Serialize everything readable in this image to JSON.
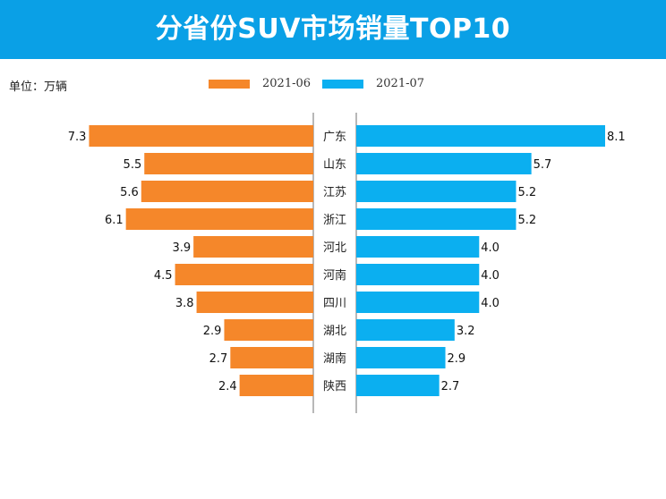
{
  "header": {
    "title": "分省份SUV市场销量TOP10"
  },
  "unit_label": "单位：万辆",
  "colors": {
    "banner": "#0aa0e6",
    "series_a": "#f5872a",
    "series_b": "#0baff0",
    "axis": "#888888"
  },
  "chart_data": {
    "type": "bar",
    "orientation": "horizontal-butterfly",
    "title": "分省份SUV市场销量TOP10",
    "unit": "万辆",
    "categories": [
      "广东",
      "山东",
      "江苏",
      "浙江",
      "河北",
      "河南",
      "四川",
      "湖北",
      "湖南",
      "陕西"
    ],
    "series": [
      {
        "name": "2021-06",
        "values": [
          7.3,
          5.5,
          5.6,
          6.1,
          3.9,
          4.5,
          3.8,
          2.9,
          2.7,
          2.4
        ]
      },
      {
        "name": "2021-07",
        "values": [
          8.1,
          5.7,
          5.2,
          5.2,
          4.0,
          4.0,
          4.0,
          3.2,
          2.9,
          2.7
        ]
      }
    ],
    "xlim": [
      0,
      8.1
    ],
    "legend_position": "top-center"
  }
}
